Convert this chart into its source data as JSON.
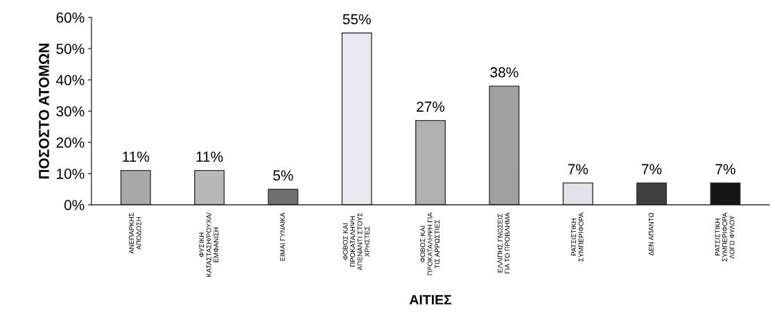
{
  "chart_data": {
    "type": "bar",
    "xlabel": "ΑΙΤΙΕΣ",
    "ylabel": "ΠΟΣΟΣΤΟ ΑΤΟΜΩΝ",
    "categories": [
      "ΑΝΕΠΑΡΚΗΣ\nΑΠΟΔΟΣΗ",
      "ΦΥΣΙΚΗ\nΚΑΤΑΣΤΑΣΗ/ΡΟΥΧΑ/\nΕΜΦΑΝΙΣΗ",
      "ΕΙΜΑΙ ΓΥΝΑΙΚΑ",
      "ΦΟΒΟΣ ΚΑΙ\nΠΡΟΚΑΤΑΛΗΨΗ\nΑΠΕΝΑΝΤΙ ΣΤΟΥΣ\nΧΡΗΣΤΕΣ",
      "ΦΟΒΟΣ ΚΑΙ\nΠΡΟΚΑΤΑΛΗΨΗ ΓΙΑ\nΤΙΣ ΑΡΡΩΣΤΙΕΣ",
      "ΕΛΛΙΠΗΣ ΓΝΩΣΕΙΣ\nΓΙΑ ΤΟ ΠΡΟΒΛΗΜΑ",
      "ΡΑΤΣΙΣΤΙΚΗ\nΣΥΜΠΕΡΙΦΟΡΑ",
      "ΔΕΝ ΑΠΑΝΤΩ",
      "ΡΑΤΣΙΣΤΙΚΗ\nΣΥΜΠΕΡΙΦΟΡΑ\nΛΟΓΩ ΦΥΛΟΥ"
    ],
    "values": [
      11,
      11,
      5,
      55,
      27,
      38,
      7,
      7,
      7
    ],
    "value_labels": [
      "11%",
      "11%",
      "5%",
      "55%",
      "27%",
      "38%",
      "7%",
      "7%",
      "7%"
    ],
    "colors": [
      "#a8a8a8",
      "#b8b8b8",
      "#707070",
      "#e8e8ee",
      "#b0b0b0",
      "#a0a0a0",
      "#e2e2ea",
      "#404040",
      "#151515"
    ],
    "ylim": [
      0,
      60
    ],
    "yticks": [
      {
        "value": 0,
        "label": "0%"
      },
      {
        "value": 10,
        "label": "10%"
      },
      {
        "value": 20,
        "label": "20%"
      },
      {
        "value": 30,
        "label": "30%"
      },
      {
        "value": 40,
        "label": "40%"
      },
      {
        "value": 50,
        "label": "50%"
      },
      {
        "value": 60,
        "label": "60%"
      }
    ],
    "grid": false,
    "legend": false
  }
}
